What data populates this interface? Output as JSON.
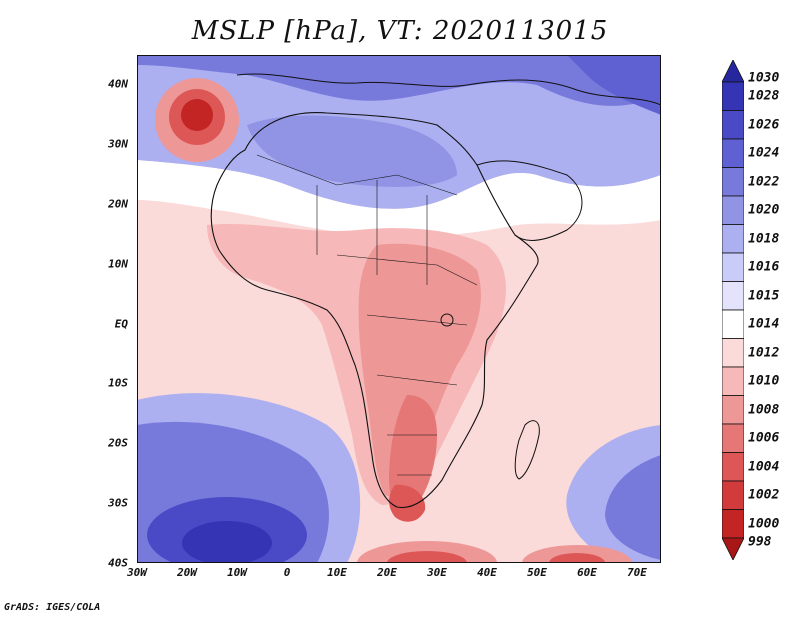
{
  "title": "MSLP [hPa], VT: 2020113015",
  "footer": "GrADS: IGES/COLA",
  "axes": {
    "y_labels": [
      "40N",
      "30N",
      "20N",
      "10N",
      "EQ",
      "10S",
      "20S",
      "30S",
      "40S"
    ],
    "x_labels": [
      "30W",
      "20W",
      "10W",
      "0",
      "10E",
      "20E",
      "30E",
      "40E",
      "50E",
      "60E",
      "70E"
    ]
  },
  "colorbar": {
    "levels": [
      "1030",
      "1028",
      "1026",
      "1024",
      "1022",
      "1020",
      "1018",
      "1016",
      "1015",
      "1014",
      "1012",
      "1010",
      "1008",
      "1006",
      "1004",
      "1002",
      "1000",
      "998"
    ],
    "colors": [
      "#26279e",
      "#3534b4",
      "#4a4ac7",
      "#5f61d2",
      "#7779db",
      "#9194e5",
      "#acaff0",
      "#c9cbf8",
      "#e3e4fc",
      "#ffffff",
      "#fbdada",
      "#f6b8b8",
      "#ee9797",
      "#e67777",
      "#dd5757",
      "#d23b3b",
      "#c32424",
      "#a81616"
    ]
  }
}
